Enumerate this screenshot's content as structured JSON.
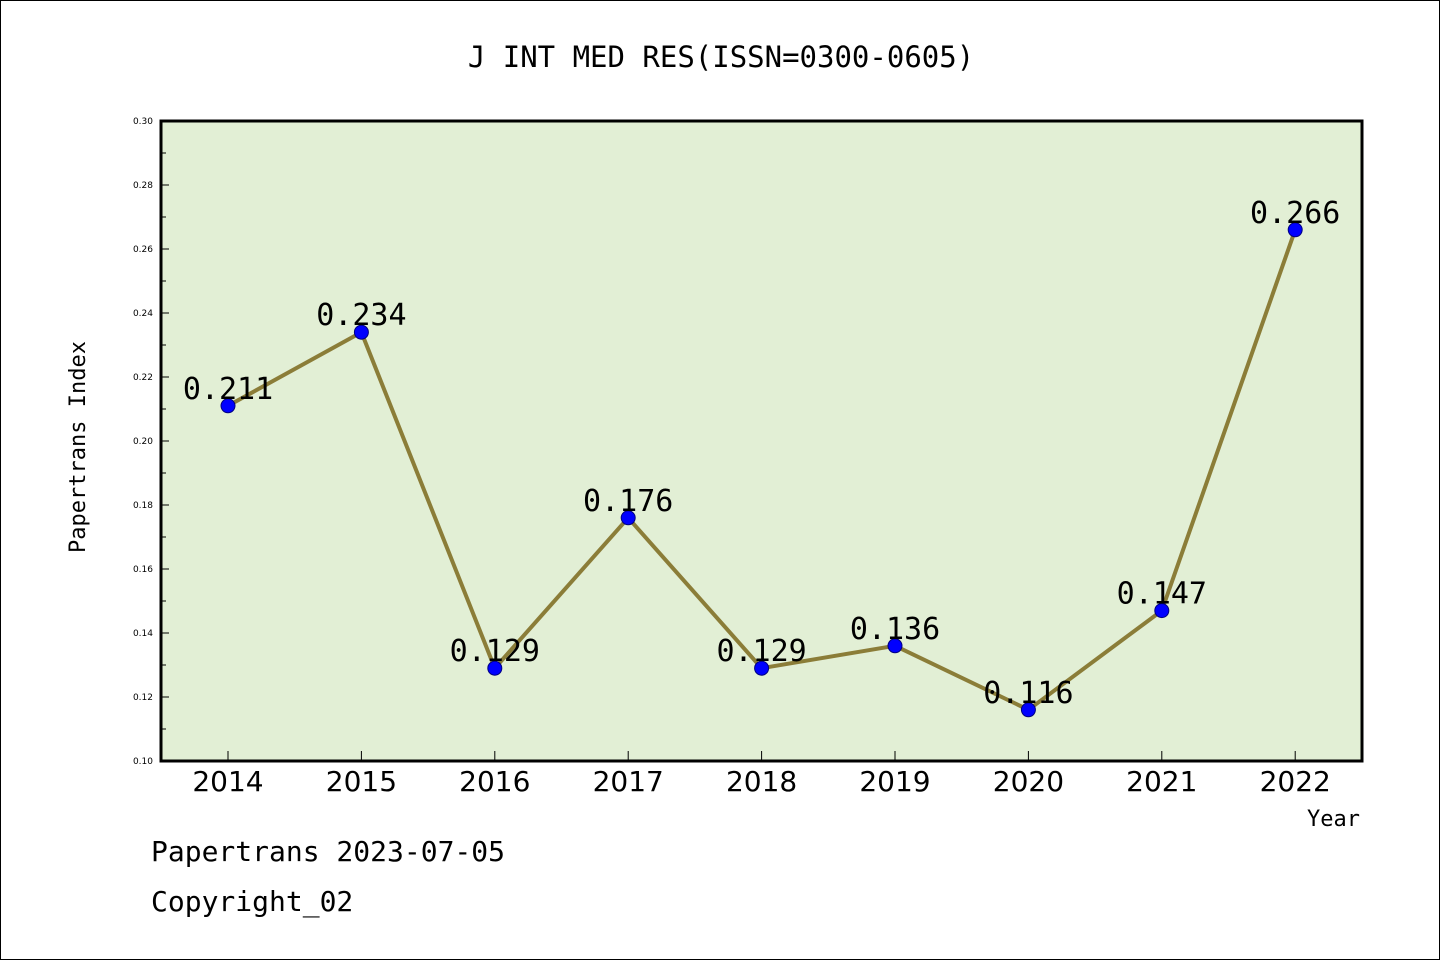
{
  "footer": {
    "line1": "Papertrans 2023-07-05",
    "line2": "Copyright_02"
  },
  "chart_data": {
    "type": "line",
    "title": "J INT MED RES(ISSN=0300-0605)",
    "xlabel": "Year",
    "ylabel": "Papertrans Index",
    "categories": [
      "2014",
      "2015",
      "2016",
      "2017",
      "2018",
      "2019",
      "2020",
      "2021",
      "2022"
    ],
    "values": [
      0.211,
      0.234,
      0.129,
      0.176,
      0.129,
      0.136,
      0.116,
      0.147,
      0.266
    ],
    "value_labels": [
      "0.211",
      "0.234",
      "0.129",
      "0.176",
      "0.129",
      "0.136",
      "0.116",
      "0.147",
      "0.266"
    ],
    "ylim": [
      0.1,
      0.3
    ],
    "yticks": [
      "0.10",
      "0.12",
      "0.14",
      "0.16",
      "0.18",
      "0.20",
      "0.22",
      "0.24",
      "0.26",
      "0.28",
      "0.30"
    ],
    "grid": false,
    "colors": {
      "plot_bg": "#e2efd5",
      "line": "#8b7d38",
      "marker": "#0000ff",
      "marker_edge": "#000080"
    }
  }
}
